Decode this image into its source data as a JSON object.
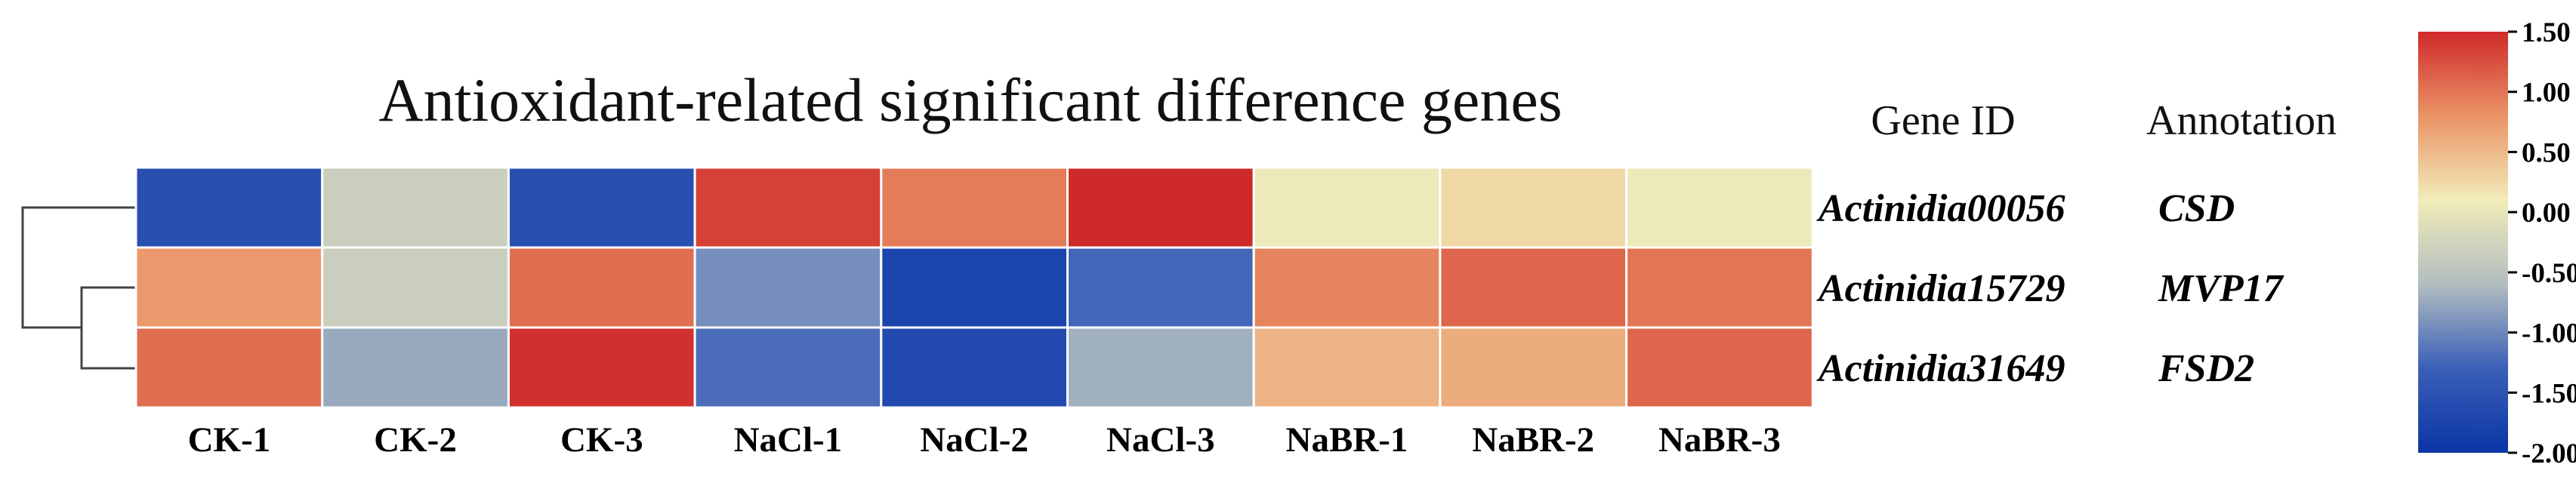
{
  "chart_data": {
    "type": "heatmap",
    "title": "Antioxidant-related significant difference genes",
    "columns": [
      "CK-1",
      "CK-2",
      "CK-3",
      "NaCl-1",
      "NaCl-2",
      "NaCl-3",
      "NaBR-1",
      "NaBR-2",
      "NaBR-3"
    ],
    "rows": [
      {
        "gene_id": "Actinidia00056",
        "annotation": "CSD",
        "values": [
          -1.55,
          -0.35,
          -1.55,
          1.35,
          0.95,
          1.5,
          0.05,
          0.25,
          0.05
        ]
      },
      {
        "gene_id": "Actinidia15729",
        "annotation": "MVP17",
        "values": [
          0.75,
          -0.35,
          1.05,
          -0.95,
          -1.75,
          -1.25,
          0.9,
          1.1,
          1.0
        ]
      },
      {
        "gene_id": "Actinidia31649",
        "annotation": "FSD2",
        "values": [
          1.05,
          -0.75,
          1.45,
          -1.2,
          -1.65,
          -0.7,
          0.55,
          0.6,
          1.1
        ]
      }
    ],
    "header_gene_id": "Gene ID",
    "header_annotation": "Annotation",
    "colorbar": {
      "min": -2.0,
      "max": 1.5,
      "ticks": [
        "1.50",
        "1.00",
        "0.50",
        "0.00",
        "-0.50",
        "-1.00",
        "-1.50",
        "-2.00"
      ],
      "colors": [
        "#0a35a5",
        "#3a5fb8",
        "#b2bdc0",
        "#f1ecb9",
        "#ea9366",
        "#cf2a2a"
      ]
    },
    "dendrogram": "rows 2 and 3 cluster first, then join row 1"
  }
}
